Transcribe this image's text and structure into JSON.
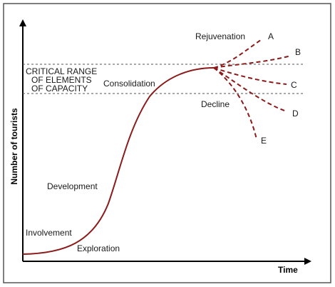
{
  "diagram": {
    "y_axis_label": "Number of tourists",
    "x_axis_label": "Time",
    "capacity_label": [
      "CRITICAL RANGE",
      "OF ELEMENTS",
      "OF CAPACITY"
    ],
    "stages": {
      "exploration": "Exploration",
      "involvement": "Involvement",
      "development": "Development",
      "consolidation": "Consolidation",
      "rejuvenation": "Rejuvenation",
      "decline": "Decline"
    },
    "branches": [
      "A",
      "B",
      "C",
      "D",
      "E"
    ],
    "colors": {
      "curve": "#8b1a1a",
      "axes": "#000000",
      "frame": "#555555",
      "capacity_lines": "#555555"
    }
  }
}
